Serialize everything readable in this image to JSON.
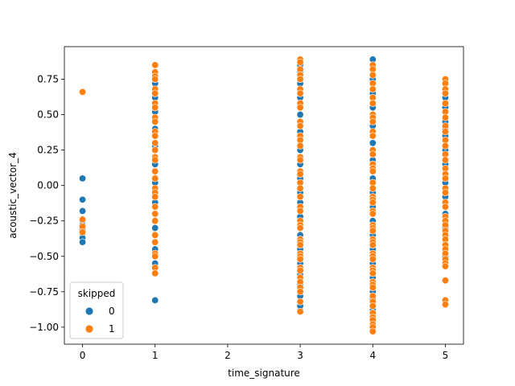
{
  "chart_data": {
    "type": "scatter",
    "title": "",
    "xlabel": "time_signature",
    "ylabel": "acoustic_vector_4",
    "xlim": [
      -0.25,
      5.25
    ],
    "ylim": [
      -1.12,
      0.98
    ],
    "xticks": [
      0,
      1,
      2,
      3,
      4,
      5
    ],
    "yticks": [
      -1.0,
      -0.75,
      -0.5,
      -0.25,
      0.0,
      0.25,
      0.5,
      0.75
    ],
    "ytick_labels": [
      "−1.00",
      "−0.75",
      "−0.50",
      "−0.25",
      "0.00",
      "0.25",
      "0.50",
      "0.75"
    ],
    "grid": false,
    "legend": {
      "title": "skipped",
      "placement": "lower-left"
    },
    "series": [
      {
        "name": "0",
        "color": "#1f77b4",
        "points": [
          [
            0,
            0.05
          ],
          [
            0,
            -0.1
          ],
          [
            0,
            -0.18
          ],
          [
            0,
            -0.25
          ],
          [
            0,
            -0.28
          ],
          [
            0,
            -0.31
          ],
          [
            0,
            -0.34
          ],
          [
            0,
            -0.37
          ],
          [
            0,
            -0.4
          ],
          [
            1,
            -0.81
          ],
          [
            1,
            -0.55
          ],
          [
            1,
            -0.45
          ],
          [
            1,
            -0.3
          ],
          [
            1,
            -0.12
          ],
          [
            1,
            0.02
          ],
          [
            1,
            0.15
          ],
          [
            1,
            0.28
          ],
          [
            1,
            0.4
          ],
          [
            1,
            0.52
          ],
          [
            1,
            0.62
          ],
          [
            1,
            0.72
          ],
          [
            3,
            -0.88
          ],
          [
            3,
            -0.85
          ],
          [
            3,
            -0.78
          ],
          [
            3,
            -0.7
          ],
          [
            3,
            -0.63
          ],
          [
            3,
            -0.55
          ],
          [
            3,
            -0.45
          ],
          [
            3,
            -0.35
          ],
          [
            3,
            -0.22
          ],
          [
            3,
            -0.12
          ],
          [
            3,
            -0.05
          ],
          [
            3,
            0.05
          ],
          [
            3,
            0.15
          ],
          [
            3,
            0.25
          ],
          [
            3,
            0.38
          ],
          [
            3,
            0.5
          ],
          [
            3,
            0.62
          ],
          [
            3,
            0.72
          ],
          [
            3,
            0.8
          ],
          [
            3,
            0.85
          ],
          [
            4,
            -0.88
          ],
          [
            4,
            -0.8
          ],
          [
            4,
            -0.75
          ],
          [
            4,
            -0.65
          ],
          [
            4,
            -0.55
          ],
          [
            4,
            -0.45
          ],
          [
            4,
            -0.35
          ],
          [
            4,
            -0.25
          ],
          [
            4,
            -0.15
          ],
          [
            4,
            -0.05
          ],
          [
            4,
            0.05
          ],
          [
            4,
            0.18
          ],
          [
            4,
            0.3
          ],
          [
            4,
            0.42
          ],
          [
            4,
            0.55
          ],
          [
            4,
            0.65
          ],
          [
            4,
            0.75
          ],
          [
            4,
            0.89
          ],
          [
            5,
            -0.5
          ],
          [
            5,
            -0.42
          ],
          [
            5,
            -0.3
          ],
          [
            5,
            -0.2
          ],
          [
            5,
            -0.08
          ],
          [
            5,
            0.02
          ],
          [
            5,
            0.15
          ],
          [
            5,
            0.25
          ],
          [
            5,
            0.35
          ],
          [
            5,
            0.4
          ],
          [
            5,
            0.45
          ],
          [
            5,
            0.55
          ],
          [
            5,
            0.62
          ]
        ]
      },
      {
        "name": "1",
        "color": "#ff7f0e",
        "points": [
          [
            0,
            0.66
          ],
          [
            0,
            -0.24
          ],
          [
            0,
            -0.29
          ],
          [
            0,
            -0.33
          ],
          [
            1,
            0.85
          ],
          [
            1,
            0.8
          ],
          [
            1,
            0.77
          ],
          [
            1,
            0.75
          ],
          [
            1,
            0.68
          ],
          [
            1,
            0.65
          ],
          [
            1,
            0.58
          ],
          [
            1,
            0.55
          ],
          [
            1,
            0.48
          ],
          [
            1,
            0.45
          ],
          [
            1,
            0.38
          ],
          [
            1,
            0.35
          ],
          [
            1,
            0.3
          ],
          [
            1,
            0.25
          ],
          [
            1,
            0.2
          ],
          [
            1,
            0.18
          ],
          [
            1,
            0.1
          ],
          [
            1,
            0.05
          ],
          [
            1,
            -0.02
          ],
          [
            1,
            -0.05
          ],
          [
            1,
            -0.08
          ],
          [
            1,
            -0.15
          ],
          [
            1,
            -0.2
          ],
          [
            1,
            -0.25
          ],
          [
            1,
            -0.35
          ],
          [
            1,
            -0.4
          ],
          [
            1,
            -0.48
          ],
          [
            1,
            -0.5
          ],
          [
            1,
            -0.58
          ],
          [
            1,
            -0.62
          ],
          [
            3,
            0.89
          ],
          [
            3,
            0.87
          ],
          [
            3,
            0.82
          ],
          [
            3,
            0.78
          ],
          [
            3,
            0.75
          ],
          [
            3,
            0.68
          ],
          [
            3,
            0.65
          ],
          [
            3,
            0.58
          ],
          [
            3,
            0.55
          ],
          [
            3,
            0.45
          ],
          [
            3,
            0.42
          ],
          [
            3,
            0.35
          ],
          [
            3,
            0.32
          ],
          [
            3,
            0.28
          ],
          [
            3,
            0.2
          ],
          [
            3,
            0.18
          ],
          [
            3,
            0.1
          ],
          [
            3,
            0.08
          ],
          [
            3,
            0.02
          ],
          [
            3,
            -0.02
          ],
          [
            3,
            -0.08
          ],
          [
            3,
            -0.15
          ],
          [
            3,
            -0.18
          ],
          [
            3,
            -0.25
          ],
          [
            3,
            -0.28
          ],
          [
            3,
            -0.3
          ],
          [
            3,
            -0.38
          ],
          [
            3,
            -0.4
          ],
          [
            3,
            -0.42
          ],
          [
            3,
            -0.48
          ],
          [
            3,
            -0.5
          ],
          [
            3,
            -0.52
          ],
          [
            3,
            -0.58
          ],
          [
            3,
            -0.6
          ],
          [
            3,
            -0.65
          ],
          [
            3,
            -0.68
          ],
          [
            3,
            -0.72
          ],
          [
            3,
            -0.75
          ],
          [
            3,
            -0.82
          ],
          [
            3,
            -0.89
          ],
          [
            4,
            0.85
          ],
          [
            4,
            0.82
          ],
          [
            4,
            0.78
          ],
          [
            4,
            0.72
          ],
          [
            4,
            0.68
          ],
          [
            4,
            0.62
          ],
          [
            4,
            0.58
          ],
          [
            4,
            0.5
          ],
          [
            4,
            0.48
          ],
          [
            4,
            0.45
          ],
          [
            4,
            0.38
          ],
          [
            4,
            0.35
          ],
          [
            4,
            0.25
          ],
          [
            4,
            0.22
          ],
          [
            4,
            0.15
          ],
          [
            4,
            0.12
          ],
          [
            4,
            0.1
          ],
          [
            4,
            0.02
          ],
          [
            4,
            -0.02
          ],
          [
            4,
            -0.08
          ],
          [
            4,
            -0.1
          ],
          [
            4,
            -0.12
          ],
          [
            4,
            -0.18
          ],
          [
            4,
            -0.2
          ],
          [
            4,
            -0.28
          ],
          [
            4,
            -0.3
          ],
          [
            4,
            -0.32
          ],
          [
            4,
            -0.38
          ],
          [
            4,
            -0.4
          ],
          [
            4,
            -0.42
          ],
          [
            4,
            -0.48
          ],
          [
            4,
            -0.5
          ],
          [
            4,
            -0.52
          ],
          [
            4,
            -0.58
          ],
          [
            4,
            -0.6
          ],
          [
            4,
            -0.62
          ],
          [
            4,
            -0.68
          ],
          [
            4,
            -0.7
          ],
          [
            4,
            -0.72
          ],
          [
            4,
            -0.78
          ],
          [
            4,
            -0.82
          ],
          [
            4,
            -0.85
          ],
          [
            4,
            -0.9
          ],
          [
            4,
            -0.93
          ],
          [
            4,
            -0.95
          ],
          [
            4,
            -0.98
          ],
          [
            4,
            -1.0
          ],
          [
            4,
            -1.03
          ],
          [
            5,
            0.75
          ],
          [
            5,
            0.72
          ],
          [
            5,
            0.68
          ],
          [
            5,
            0.65
          ],
          [
            5,
            0.58
          ],
          [
            5,
            0.52
          ],
          [
            5,
            0.48
          ],
          [
            5,
            0.42
          ],
          [
            5,
            0.38
          ],
          [
            5,
            0.32
          ],
          [
            5,
            0.28
          ],
          [
            5,
            0.22
          ],
          [
            5,
            0.18
          ],
          [
            5,
            0.12
          ],
          [
            5,
            0.08
          ],
          [
            5,
            0.05
          ],
          [
            5,
            -0.02
          ],
          [
            5,
            -0.05
          ],
          [
            5,
            -0.12
          ],
          [
            5,
            -0.15
          ],
          [
            5,
            -0.22
          ],
          [
            5,
            -0.25
          ],
          [
            5,
            -0.28
          ],
          [
            5,
            -0.32
          ],
          [
            5,
            -0.35
          ],
          [
            5,
            -0.38
          ],
          [
            5,
            -0.42
          ],
          [
            5,
            -0.45
          ],
          [
            5,
            -0.48
          ],
          [
            5,
            -0.52
          ],
          [
            5,
            -0.55
          ],
          [
            5,
            -0.57
          ],
          [
            5,
            -0.67
          ],
          [
            5,
            -0.81
          ],
          [
            5,
            -0.84
          ]
        ]
      }
    ]
  }
}
